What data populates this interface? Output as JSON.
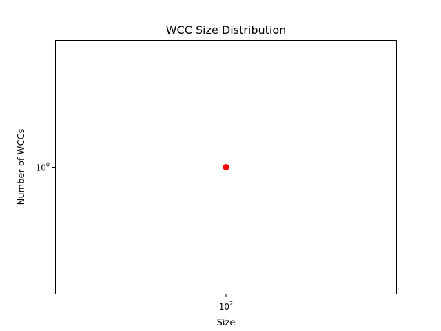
{
  "chart_data": {
    "type": "scatter",
    "title": "WCC Size Distribution",
    "xlabel": "Size",
    "ylabel": "Number of WCCs",
    "x_scale": "log",
    "y_scale": "log",
    "x_ticks": [
      {
        "value": 100,
        "base": "10",
        "exp": "2"
      }
    ],
    "y_ticks": [
      {
        "value": 1,
        "base": "10",
        "exp": "0"
      }
    ],
    "xlim": [
      63.1,
      158.5
    ],
    "ylim": [
      0.631,
      1.585
    ],
    "grid": false,
    "series": [
      {
        "x": [
          100
        ],
        "y": [
          1
        ],
        "color": "#ff0000"
      }
    ]
  }
}
